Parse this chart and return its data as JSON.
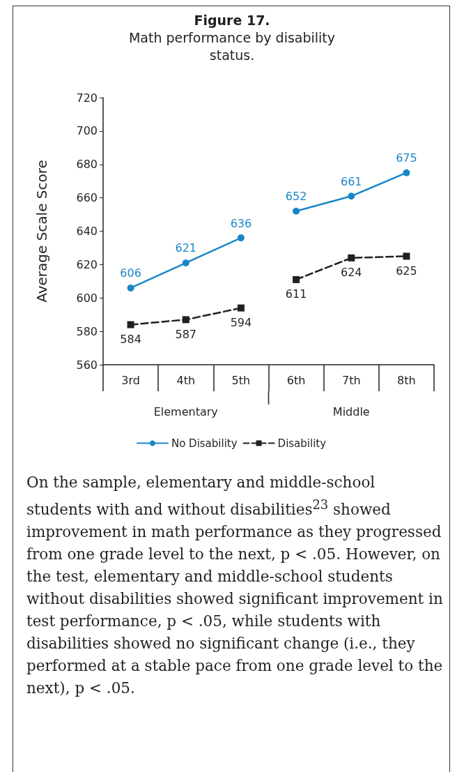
{
  "chart_data": {
    "type": "line",
    "title": "Figure 17.",
    "subtitle": "Math performance by disability status.",
    "ylabel": "Average Scale Score",
    "categories": [
      "3rd",
      "4th",
      "5th",
      "6th",
      "7th",
      "8th"
    ],
    "series": [
      {
        "name": "No Disability",
        "color": "#1a86c8",
        "marker": "circle",
        "line_style": "solid",
        "values": [
          606,
          621,
          636,
          null,
          null,
          null
        ]
      },
      {
        "name": "Disability",
        "color": "#231f20",
        "marker": "square",
        "line_style": "dashed",
        "values": [
          584,
          587,
          594,
          null,
          null,
          null
        ]
      },
      {
        "color": "#1a86c8",
        "marker": "circle",
        "line_style": "solid",
        "values": [
          null,
          null,
          null,
          652,
          661,
          675
        ]
      },
      {
        "color": "#231f20",
        "marker": "square",
        "line_style": "dashed",
        "values": [
          null,
          null,
          null,
          611,
          624,
          625
        ]
      }
    ],
    "ylim": [
      560,
      720
    ],
    "yticks": [
      560,
      580,
      600,
      620,
      640,
      660,
      680,
      700,
      720
    ],
    "grid": false,
    "legend": "bottom",
    "data_labels": true,
    "annotations": [
      "Elementary",
      "Middle",
      "On the sample, elementary and middle-school students with and without disabilities$^{23}$ showed improvement in math performance as they progressed from one grade level to the next, p < .05. However, on the test, elementary and middle-school students without disabilities showed significant improvement in test performance, p < .05, while students with disabilities showed no significant change (i.e., they performed at a stable pace from one grade level to the next), p < .05."
    ]
  }
}
